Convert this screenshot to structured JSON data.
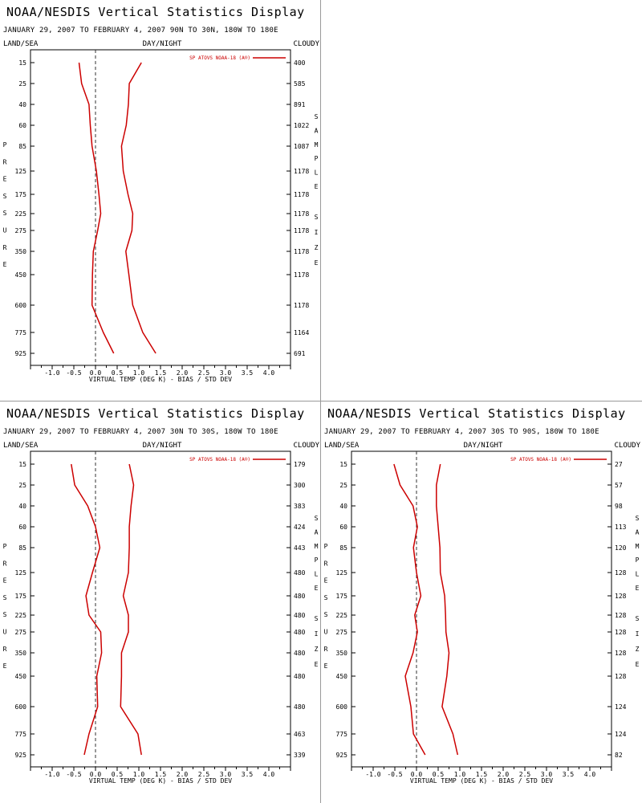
{
  "display_title": "NOAA/NESDIS Vertical Statistics Display",
  "headers": {
    "left": "LAND/SEA",
    "center": "DAY/NIGHT",
    "right": "CLOUDY"
  },
  "left_axis_title": "PRESSURE",
  "right_axis_title": "SAMPLE SIZE",
  "series_color": "#cc0000",
  "chart_data": [
    {
      "type": "line",
      "subtitle": "JANUARY 29, 2007 TO FEBRUARY 4, 2007 90N TO 30N, 180W TO 180E",
      "xlabel": "VIRTUAL TEMP (DEG K) - BIAS / STD DEV",
      "xlim": [
        -1.5,
        4.5
      ],
      "xticks": [
        "-1.0",
        "-0.5",
        "0.0",
        "0.5",
        "1.0",
        "1.5",
        "2.0",
        "2.5",
        "3.0",
        "3.5",
        "4.0"
      ],
      "pressure_levels": [
        "15",
        "25",
        "40",
        "60",
        "85",
        "125",
        "175",
        "225",
        "275",
        "350",
        "450",
        "600",
        "775",
        "925"
      ],
      "sample_size": [
        "400",
        "585",
        "891",
        "1022",
        "1087",
        "1178",
        "1178",
        "1178",
        "1178",
        "1178",
        "1178",
        "1178",
        "1164",
        "691"
      ],
      "legend": "SP ATOVS NOAA-18 (A®)",
      "series": [
        {
          "kind": "bias",
          "values": [
            -0.38,
            -0.32,
            -0.15,
            -0.12,
            -0.08,
            0.02,
            0.08,
            0.12,
            0.05,
            -0.05,
            -0.07,
            -0.08,
            0.18,
            0.42
          ]
        },
        {
          "kind": "std_dev",
          "values": [
            1.06,
            0.78,
            0.76,
            0.71,
            0.6,
            0.64,
            0.75,
            0.86,
            0.84,
            0.7,
            0.77,
            0.86,
            1.09,
            1.39
          ]
        }
      ]
    },
    {
      "type": "line",
      "subtitle": "JANUARY 29, 2007 TO FEBRUARY 4, 2007 30N TO 30S, 180W TO 180E",
      "xlabel": "VIRTUAL TEMP (DEG K) - BIAS / STD DEV",
      "xlim": [
        -1.5,
        4.5
      ],
      "xticks": [
        "-1.0",
        "-0.5",
        "0.0",
        "0.5",
        "1.0",
        "1.5",
        "2.0",
        "2.5",
        "3.0",
        "3.5",
        "4.0"
      ],
      "pressure_levels": [
        "15",
        "25",
        "40",
        "60",
        "85",
        "125",
        "175",
        "225",
        "275",
        "350",
        "450",
        "600",
        "775",
        "925"
      ],
      "sample_size": [
        "179",
        "300",
        "383",
        "424",
        "443",
        "480",
        "480",
        "480",
        "480",
        "480",
        "480",
        "480",
        "463",
        "339"
      ],
      "legend": "SP ATOVS NOAA-18 (A®)",
      "series": [
        {
          "kind": "bias",
          "values": [
            -0.56,
            -0.48,
            -0.18,
            0.0,
            0.1,
            -0.07,
            -0.22,
            -0.15,
            0.12,
            0.14,
            0.03,
            0.05,
            -0.15,
            -0.26
          ]
        },
        {
          "kind": "std_dev",
          "values": [
            0.78,
            0.88,
            0.82,
            0.78,
            0.78,
            0.76,
            0.64,
            0.76,
            0.76,
            0.6,
            0.6,
            0.58,
            0.98,
            1.06
          ]
        }
      ]
    },
    {
      "type": "line",
      "subtitle": "JANUARY 29, 2007 TO FEBRUARY 4, 2007 30S TO 90S, 180W TO 180E",
      "xlabel": "VIRTUAL TEMP (DEG K) - BIAS / STD DEV",
      "xlim": [
        -1.5,
        4.5
      ],
      "xticks": [
        "-1.0",
        "-0.5",
        "0.0",
        "0.5",
        "1.0",
        "1.5",
        "2.0",
        "2.5",
        "3.0",
        "3.5",
        "4.0"
      ],
      "pressure_levels": [
        "15",
        "25",
        "40",
        "60",
        "85",
        "125",
        "175",
        "225",
        "275",
        "350",
        "450",
        "600",
        "775",
        "925"
      ],
      "sample_size": [
        "27",
        "57",
        "98",
        "113",
        "120",
        "128",
        "128",
        "128",
        "128",
        "128",
        "128",
        "124",
        "124",
        "82"
      ],
      "legend": "SP ATOVS NOAA-18 (A®)",
      "series": [
        {
          "kind": "bias",
          "values": [
            -0.52,
            -0.38,
            -0.08,
            0.02,
            -0.07,
            0.0,
            0.1,
            -0.04,
            0.02,
            -0.08,
            -0.26,
            -0.13,
            -0.07,
            0.2
          ]
        },
        {
          "kind": "std_dev",
          "values": [
            0.55,
            0.46,
            0.46,
            0.5,
            0.54,
            0.55,
            0.65,
            0.67,
            0.68,
            0.75,
            0.7,
            0.59,
            0.84,
            0.95
          ]
        }
      ]
    }
  ]
}
